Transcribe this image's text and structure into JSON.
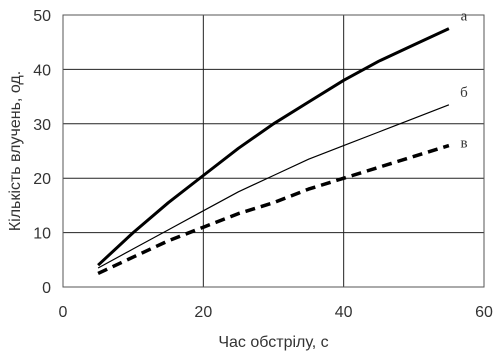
{
  "chart_data": {
    "type": "line",
    "title": "",
    "xlabel": "Час обстрілу, с",
    "ylabel": "Кількість влучень, од.",
    "xlim": [
      0,
      60
    ],
    "ylim": [
      0,
      50
    ],
    "x_ticks": [
      0,
      20,
      40,
      60
    ],
    "y_ticks": [
      0,
      10,
      20,
      30,
      40,
      50
    ],
    "grid": true,
    "series": [
      {
        "name": "а",
        "style": "thick-solid",
        "color": "#000000",
        "x": [
          5,
          10,
          15,
          20,
          25,
          30,
          35,
          40,
          45,
          50,
          55
        ],
        "y": [
          4,
          10,
          15.5,
          20.5,
          25.5,
          30,
          34,
          38,
          41.5,
          44.5,
          47.5
        ]
      },
      {
        "name": "б",
        "style": "thin-solid",
        "color": "#000000",
        "x": [
          5,
          10,
          15,
          20,
          25,
          30,
          35,
          40,
          45,
          50,
          55
        ],
        "y": [
          3.5,
          7,
          10.5,
          14,
          17.5,
          20.5,
          23.5,
          26,
          28.5,
          31,
          33.5
        ]
      },
      {
        "name": "в",
        "style": "thick-dashed",
        "color": "#000000",
        "x": [
          5,
          10,
          15,
          20,
          25,
          30,
          35,
          40,
          45,
          50,
          55
        ],
        "y": [
          2.5,
          5.5,
          8.5,
          11,
          13.5,
          15.5,
          18,
          20,
          22,
          24,
          26
        ]
      }
    ]
  }
}
